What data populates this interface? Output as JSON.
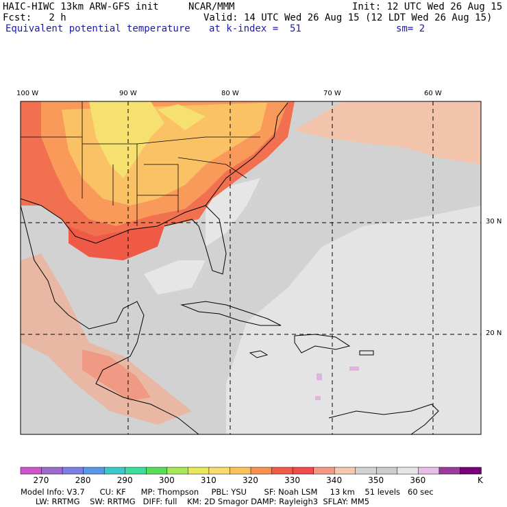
{
  "header": {
    "model_line": "HAIC-HIWC 13km ARW-GFS init",
    "org": "NCAR/MMM",
    "init": "Init: 12 UTC Wed 26 Aug 15",
    "fcst": "Fcst:   2 h",
    "valid": "Valid: 14 UTC Wed 26 Aug 15 (12 LDT Wed 26 Aug 15)",
    "field": "Equivalent potential temperature",
    "level": "at k-index =  51",
    "smooth": "sm= 2"
  },
  "map_labels": {
    "lon": [
      "100 W",
      "90 W",
      "80 W",
      "70 W",
      "60 W"
    ],
    "lat": [
      "30 N",
      "20 N"
    ]
  },
  "colorbar": {
    "colors": [
      "#cc55cc",
      "#9b6acb",
      "#7e7ee8",
      "#5a97e6",
      "#3cc8c8",
      "#3cdc9c",
      "#5adc5a",
      "#a8e858",
      "#e8e85a",
      "#fadc6e",
      "#fac25a",
      "#fa9050",
      "#f05a46",
      "#f04a4a",
      "#f59a82",
      "#f5c8b0",
      "#d2d2d2",
      "#cccccc",
      "#e6e6e6",
      "#e6bee6",
      "#9b3c9b",
      "#780078"
    ],
    "labels": [
      "270",
      "280",
      "290",
      "300",
      "310",
      "320",
      "330",
      "340",
      "350",
      "360",
      "K"
    ]
  },
  "info": {
    "line1": "Model Info: V3.7      CU: KF      MP: Thompson     PBL: YSU       SF: Noah LSM     13 km    51 levels   60 sec",
    "line2": "      LW: RRTMG    SW: RRTMG   DIFF: full    KM: 2D Smagor DAMP: Rayleigh3  SFLAY: MM5"
  }
}
